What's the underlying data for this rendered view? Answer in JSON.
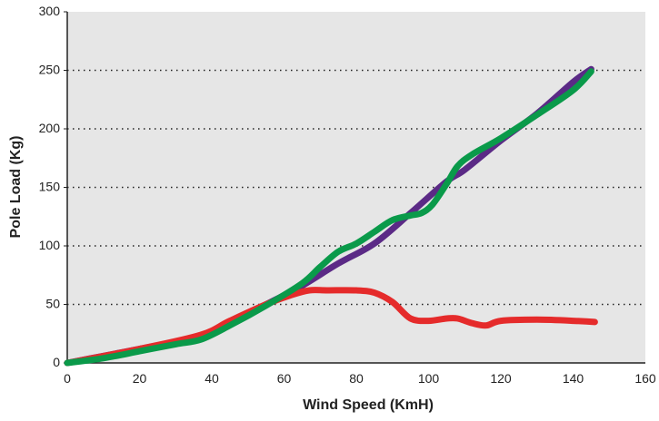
{
  "chart_data": {
    "type": "line",
    "title": "",
    "xlabel": "Wind Speed (KmH)",
    "ylabel": "Pole Load (Kg)",
    "xlim": [
      0,
      160
    ],
    "ylim": [
      0,
      300
    ],
    "x_ticks": [
      0,
      20,
      40,
      60,
      80,
      100,
      120,
      140,
      160
    ],
    "y_ticks": [
      0,
      50,
      100,
      150,
      200,
      250,
      300
    ],
    "gridlines": "horizontal dotted at 50, 100, 150, 200, 250",
    "legend": "none",
    "plot_background": "#e6e6e6",
    "series": [
      {
        "color": "#5b2a86",
        "points": [
          [
            0,
            0
          ],
          [
            10,
            6
          ],
          [
            20,
            12
          ],
          [
            30,
            18
          ],
          [
            37,
            23
          ],
          [
            45,
            34
          ],
          [
            55,
            50
          ],
          [
            65,
            66
          ],
          [
            75,
            85
          ],
          [
            85,
            102
          ],
          [
            95,
            128
          ],
          [
            105,
            155
          ],
          [
            110,
            165
          ],
          [
            120,
            190
          ],
          [
            130,
            213
          ],
          [
            140,
            240
          ],
          [
            145,
            251
          ]
        ]
      },
      {
        "color": "#e52b2b",
        "points": [
          [
            0,
            0
          ],
          [
            20,
            12
          ],
          [
            37,
            24
          ],
          [
            45,
            36
          ],
          [
            55,
            50
          ],
          [
            62,
            58
          ],
          [
            67,
            62
          ],
          [
            72,
            62
          ],
          [
            80,
            62
          ],
          [
            85,
            60
          ],
          [
            90,
            52
          ],
          [
            95,
            38
          ],
          [
            100,
            36
          ],
          [
            105,
            38
          ],
          [
            108,
            38
          ],
          [
            112,
            34
          ],
          [
            116,
            32
          ],
          [
            120,
            36
          ],
          [
            130,
            37
          ],
          [
            140,
            36
          ],
          [
            146,
            35
          ]
        ]
      },
      {
        "color": "#0a9a4a",
        "points": [
          [
            0,
            0
          ],
          [
            10,
            4
          ],
          [
            20,
            10
          ],
          [
            30,
            16
          ],
          [
            37,
            20
          ],
          [
            45,
            32
          ],
          [
            55,
            49
          ],
          [
            65,
            68
          ],
          [
            70,
            82
          ],
          [
            75,
            95
          ],
          [
            80,
            102
          ],
          [
            85,
            112
          ],
          [
            90,
            122
          ],
          [
            95,
            126
          ],
          [
            98,
            128
          ],
          [
            101,
            135
          ],
          [
            105,
            153
          ],
          [
            108,
            168
          ],
          [
            112,
            178
          ],
          [
            120,
            192
          ],
          [
            130,
            212
          ],
          [
            140,
            233
          ],
          [
            145,
            249
          ]
        ]
      }
    ]
  }
}
